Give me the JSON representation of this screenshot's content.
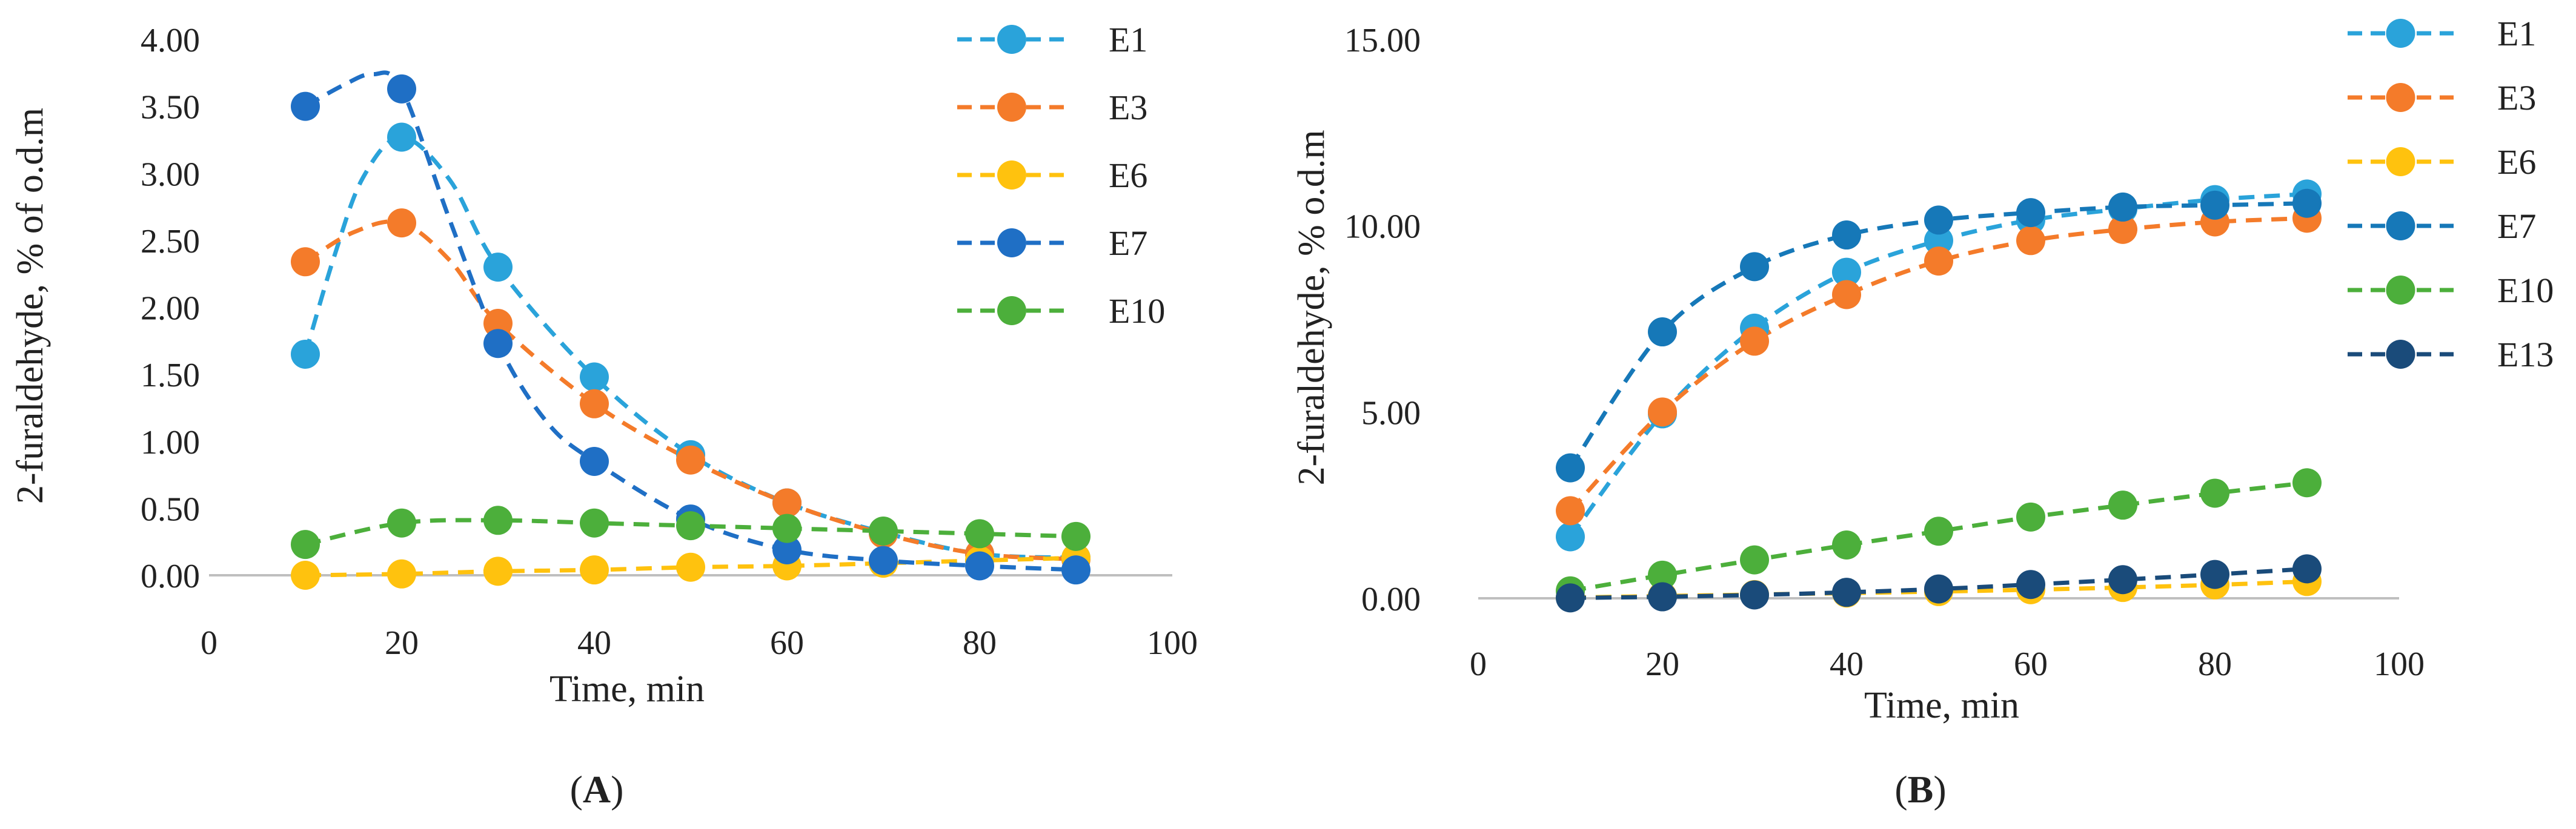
{
  "figure": {
    "colors": {
      "E1": "#2AA3DA",
      "E3": "#F47B2A",
      "E6": "#FFC20E",
      "E7_A": "#1F6FC5",
      "E7_B": "#1678B8",
      "E10": "#4CAF3B",
      "E13": "#1A4B7A",
      "axis": "#BFBFBF"
    }
  },
  "chart_data": [
    {
      "id": "A",
      "type": "scatter",
      "panel_label_open": "(",
      "panel_label": "A",
      "panel_label_close": ")",
      "xlabel": "Time, min",
      "ylabel": "2-furaldehyde, % of o.d.m",
      "xlim": [
        0,
        100
      ],
      "ylim": [
        0,
        4
      ],
      "xticks": [
        0,
        20,
        40,
        60,
        80,
        100
      ],
      "xtick_labels": [
        "0",
        "20",
        "40",
        "60",
        "80",
        "100"
      ],
      "yticks": [
        0,
        0.5,
        1,
        1.5,
        2,
        2.5,
        3,
        3.5,
        4
      ],
      "ytick_labels": [
        "0.00",
        "0.50",
        "1.00",
        "1.50",
        "2.00",
        "2.50",
        "3.00",
        "3.50",
        "4.00"
      ],
      "x": [
        10,
        20,
        30,
        40,
        50,
        60,
        70,
        80,
        90
      ],
      "series": [
        {
          "name": "E1",
          "color_key": "E1",
          "values": [
            1.65,
            3.27,
            2.3,
            1.48,
            0.9,
            0.54,
            0.32,
            0.16,
            0.13
          ]
        },
        {
          "name": "E3",
          "color_key": "E3",
          "values": [
            2.34,
            2.63,
            1.88,
            1.28,
            0.86,
            0.54,
            0.31,
            0.16,
            0.12
          ]
        },
        {
          "name": "E6",
          "color_key": "E6",
          "values": [
            0.0,
            0.01,
            0.03,
            0.04,
            0.06,
            0.07,
            0.09,
            0.11,
            0.13
          ]
        },
        {
          "name": "E7",
          "color_key": "E7_A",
          "values": [
            3.5,
            3.63,
            1.73,
            0.85,
            0.42,
            0.19,
            0.11,
            0.07,
            0.04
          ]
        },
        {
          "name": "E10",
          "color_key": "E10",
          "values": [
            0.23,
            0.39,
            0.41,
            0.39,
            0.37,
            0.35,
            0.33,
            0.31,
            0.29
          ]
        }
      ],
      "trend_points": [
        {
          "name": "E1",
          "points": [
            [
              10,
              1.65
            ],
            [
              13,
              2.38
            ],
            [
              16,
              2.97
            ],
            [
              20,
              3.27
            ],
            [
              25,
              2.95
            ],
            [
              30,
              2.3
            ],
            [
              40,
              1.48
            ],
            [
              50,
              0.9
            ],
            [
              60,
              0.54
            ],
            [
              70,
              0.32
            ],
            [
              80,
              0.16
            ],
            [
              90,
              0.13
            ]
          ]
        },
        {
          "name": "E3",
          "points": [
            [
              10,
              2.34
            ],
            [
              15,
              2.56
            ],
            [
              20,
              2.63
            ],
            [
              25,
              2.35
            ],
            [
              30,
              1.88
            ],
            [
              40,
              1.28
            ],
            [
              50,
              0.86
            ],
            [
              60,
              0.54
            ],
            [
              70,
              0.31
            ],
            [
              80,
              0.16
            ],
            [
              90,
              0.12
            ]
          ]
        },
        {
          "name": "E6",
          "points": [
            [
              10,
              0.0
            ],
            [
              20,
              0.01
            ],
            [
              30,
              0.03
            ],
            [
              40,
              0.04
            ],
            [
              50,
              0.06
            ],
            [
              60,
              0.07
            ],
            [
              70,
              0.09
            ],
            [
              80,
              0.11
            ],
            [
              90,
              0.13
            ]
          ]
        },
        {
          "name": "E7",
          "points": [
            [
              10,
              3.5
            ],
            [
              14,
              3.66
            ],
            [
              17,
              3.74
            ],
            [
              20,
              3.63
            ],
            [
              25,
              2.65
            ],
            [
              30,
              1.73
            ],
            [
              35,
              1.15
            ],
            [
              40,
              0.85
            ],
            [
              50,
              0.42
            ],
            [
              60,
              0.19
            ],
            [
              70,
              0.11
            ],
            [
              80,
              0.07
            ],
            [
              90,
              0.04
            ]
          ]
        },
        {
          "name": "E10",
          "points": [
            [
              10,
              0.23
            ],
            [
              20,
              0.39
            ],
            [
              30,
              0.41
            ],
            [
              40,
              0.39
            ],
            [
              50,
              0.37
            ],
            [
              60,
              0.35
            ],
            [
              70,
              0.33
            ],
            [
              80,
              0.31
            ],
            [
              90,
              0.29
            ]
          ]
        }
      ],
      "legend": [
        "E1",
        "E3",
        "E6",
        "E7",
        "E10"
      ],
      "legend_position": "right"
    },
    {
      "id": "B",
      "type": "scatter",
      "panel_label_open": "(",
      "panel_label": "B",
      "panel_label_close": ")",
      "xlabel": "Time, min",
      "ylabel": "2-furaldehyde, % o.d.m",
      "xlim": [
        0,
        100
      ],
      "ylim": [
        0,
        15
      ],
      "xticks": [
        0,
        20,
        40,
        60,
        80,
        100
      ],
      "xtick_labels": [
        "0",
        "20",
        "40",
        "60",
        "80",
        "100"
      ],
      "yticks": [
        0,
        5,
        10,
        15
      ],
      "ytick_labels": [
        "0.00",
        "5.00",
        "10.00",
        "15.00"
      ],
      "x": [
        10,
        20,
        30,
        40,
        50,
        60,
        70,
        80,
        90
      ],
      "series": [
        {
          "name": "E1",
          "color_key": "E1",
          "values": [
            1.65,
            4.95,
            7.25,
            8.75,
            9.6,
            10.15,
            10.45,
            10.7,
            10.85
          ]
        },
        {
          "name": "E3",
          "color_key": "E3",
          "values": [
            2.35,
            5.0,
            6.9,
            8.15,
            9.05,
            9.6,
            9.9,
            10.1,
            10.2
          ]
        },
        {
          "name": "E6",
          "color_key": "E6",
          "values": [
            0.02,
            0.06,
            0.1,
            0.14,
            0.18,
            0.23,
            0.29,
            0.36,
            0.45
          ]
        },
        {
          "name": "E7",
          "color_key": "E7_B",
          "values": [
            3.5,
            7.15,
            8.9,
            9.75,
            10.15,
            10.35,
            10.5,
            10.55,
            10.6
          ]
        },
        {
          "name": "E10",
          "color_key": "E10",
          "values": [
            0.2,
            0.62,
            1.03,
            1.43,
            1.8,
            2.18,
            2.5,
            2.82,
            3.1
          ]
        },
        {
          "name": "E13",
          "color_key": "E13",
          "values": [
            0.01,
            0.04,
            0.09,
            0.16,
            0.25,
            0.37,
            0.5,
            0.64,
            0.79
          ]
        }
      ],
      "trend_points": [
        {
          "name": "E1",
          "points": [
            [
              10,
              1.65
            ],
            [
              20,
              4.95
            ],
            [
              30,
              7.25
            ],
            [
              40,
              8.75
            ],
            [
              50,
              9.6
            ],
            [
              60,
              10.15
            ],
            [
              70,
              10.45
            ],
            [
              80,
              10.7
            ],
            [
              90,
              10.85
            ]
          ]
        },
        {
          "name": "E3",
          "points": [
            [
              10,
              2.35
            ],
            [
              20,
              5.0
            ],
            [
              30,
              6.9
            ],
            [
              40,
              8.15
            ],
            [
              50,
              9.05
            ],
            [
              60,
              9.6
            ],
            [
              70,
              9.9
            ],
            [
              80,
              10.1
            ],
            [
              90,
              10.2
            ]
          ]
        },
        {
          "name": "E6",
          "points": [
            [
              10,
              0.02
            ],
            [
              20,
              0.06
            ],
            [
              30,
              0.1
            ],
            [
              40,
              0.14
            ],
            [
              50,
              0.18
            ],
            [
              60,
              0.23
            ],
            [
              70,
              0.29
            ],
            [
              80,
              0.36
            ],
            [
              90,
              0.45
            ]
          ]
        },
        {
          "name": "E7",
          "points": [
            [
              10,
              3.5
            ],
            [
              20,
              7.15
            ],
            [
              30,
              8.9
            ],
            [
              40,
              9.75
            ],
            [
              50,
              10.15
            ],
            [
              60,
              10.35
            ],
            [
              70,
              10.5
            ],
            [
              80,
              10.55
            ],
            [
              90,
              10.6
            ]
          ]
        },
        {
          "name": "E10",
          "points": [
            [
              10,
              0.2
            ],
            [
              20,
              0.62
            ],
            [
              30,
              1.03
            ],
            [
              40,
              1.43
            ],
            [
              50,
              1.8
            ],
            [
              60,
              2.18
            ],
            [
              70,
              2.5
            ],
            [
              80,
              2.82
            ],
            [
              90,
              3.1
            ]
          ]
        },
        {
          "name": "E13",
          "points": [
            [
              10,
              0.01
            ],
            [
              20,
              0.04
            ],
            [
              30,
              0.09
            ],
            [
              40,
              0.16
            ],
            [
              50,
              0.25
            ],
            [
              60,
              0.37
            ],
            [
              70,
              0.5
            ],
            [
              80,
              0.64
            ],
            [
              90,
              0.79
            ]
          ]
        }
      ],
      "legend": [
        "E1",
        "E3",
        "E6",
        "E7",
        "E10",
        "E13"
      ],
      "legend_position": "right"
    }
  ]
}
